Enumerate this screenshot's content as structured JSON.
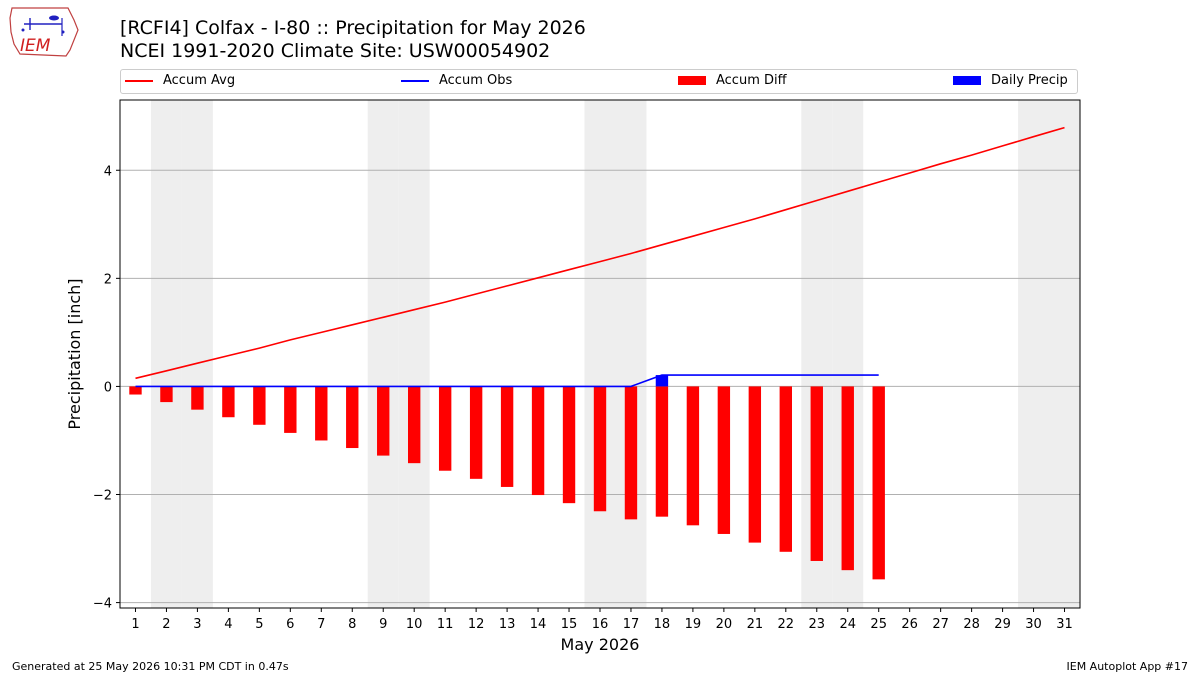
{
  "header": {
    "title_line1": "[RCFI4] Colfax - I-80 :: Precipitation for May 2026",
    "title_line2": "NCEI 1991-2020 Climate Site: USW00054902",
    "logo_text": "IEM"
  },
  "legend": {
    "accum_avg": "Accum Avg",
    "accum_obs": "Accum Obs",
    "accum_diff": "Accum Diff",
    "daily_precip": "Daily Precip"
  },
  "footer": {
    "left": "Generated at 25 May 2026 10:31 PM CDT in 0.47s",
    "right": "IEM Autoplot App #17"
  },
  "colors": {
    "accum_avg": "#ff0000",
    "accum_obs": "#0000ff",
    "accum_diff": "#ff0000",
    "daily_precip": "#0000ff",
    "weekend_shade": "#eeeeee",
    "grid": "#b0b0b0"
  },
  "chart_data": {
    "type": "bar",
    "xlabel": "May 2026",
    "ylabel": "Precipitation [inch]",
    "xlim": [
      0.5,
      31.5
    ],
    "ylim": [
      -4.1,
      5.3
    ],
    "x_ticks": [
      1,
      2,
      3,
      4,
      5,
      6,
      7,
      8,
      9,
      10,
      11,
      12,
      13,
      14,
      15,
      16,
      17,
      18,
      19,
      20,
      21,
      22,
      23,
      24,
      25,
      26,
      27,
      28,
      29,
      30,
      31
    ],
    "y_ticks": [
      -4,
      -2,
      0,
      2,
      4
    ],
    "y_tick_labels": [
      "−4",
      "−2",
      "0",
      "2",
      "4"
    ],
    "grid": "horizontal",
    "legend_placement": "top",
    "shaded_days": [
      2,
      3,
      9,
      10,
      16,
      17,
      23,
      24,
      30,
      31
    ],
    "series": [
      {
        "name": "Accum Avg",
        "kind": "line",
        "x": [
          1,
          2,
          3,
          4,
          5,
          6,
          7,
          8,
          9,
          10,
          11,
          12,
          13,
          14,
          15,
          16,
          17,
          18,
          19,
          20,
          21,
          22,
          23,
          24,
          25,
          26,
          27,
          28,
          29,
          30,
          31
        ],
        "values": [
          0.15,
          0.29,
          0.43,
          0.57,
          0.71,
          0.86,
          1.0,
          1.14,
          1.28,
          1.42,
          1.56,
          1.71,
          1.86,
          2.01,
          2.16,
          2.31,
          2.46,
          2.62,
          2.78,
          2.94,
          3.1,
          3.27,
          3.44,
          3.61,
          3.78,
          3.95,
          4.12,
          4.28,
          4.45,
          4.62,
          4.79
        ]
      },
      {
        "name": "Accum Obs",
        "kind": "line",
        "x": [
          1,
          2,
          3,
          4,
          5,
          6,
          7,
          8,
          9,
          10,
          11,
          12,
          13,
          14,
          15,
          16,
          17,
          18,
          19,
          20,
          21,
          22,
          23,
          24,
          25
        ],
        "values": [
          0,
          0,
          0,
          0,
          0,
          0,
          0,
          0,
          0,
          0,
          0,
          0,
          0,
          0,
          0,
          0,
          0,
          0.21,
          0.21,
          0.21,
          0.21,
          0.21,
          0.21,
          0.21,
          0.21
        ]
      },
      {
        "name": "Accum Diff",
        "kind": "bar",
        "x": [
          1,
          2,
          3,
          4,
          5,
          6,
          7,
          8,
          9,
          10,
          11,
          12,
          13,
          14,
          15,
          16,
          17,
          18,
          19,
          20,
          21,
          22,
          23,
          24,
          25
        ],
        "values": [
          -0.15,
          -0.29,
          -0.43,
          -0.57,
          -0.71,
          -0.86,
          -1.0,
          -1.14,
          -1.28,
          -1.42,
          -1.56,
          -1.71,
          -1.86,
          -2.01,
          -2.16,
          -2.31,
          -2.46,
          -2.41,
          -2.57,
          -2.73,
          -2.89,
          -3.06,
          -3.23,
          -3.4,
          -3.57
        ]
      },
      {
        "name": "Daily Precip",
        "kind": "bar",
        "x": [
          18
        ],
        "values": [
          0.21
        ]
      }
    ]
  }
}
